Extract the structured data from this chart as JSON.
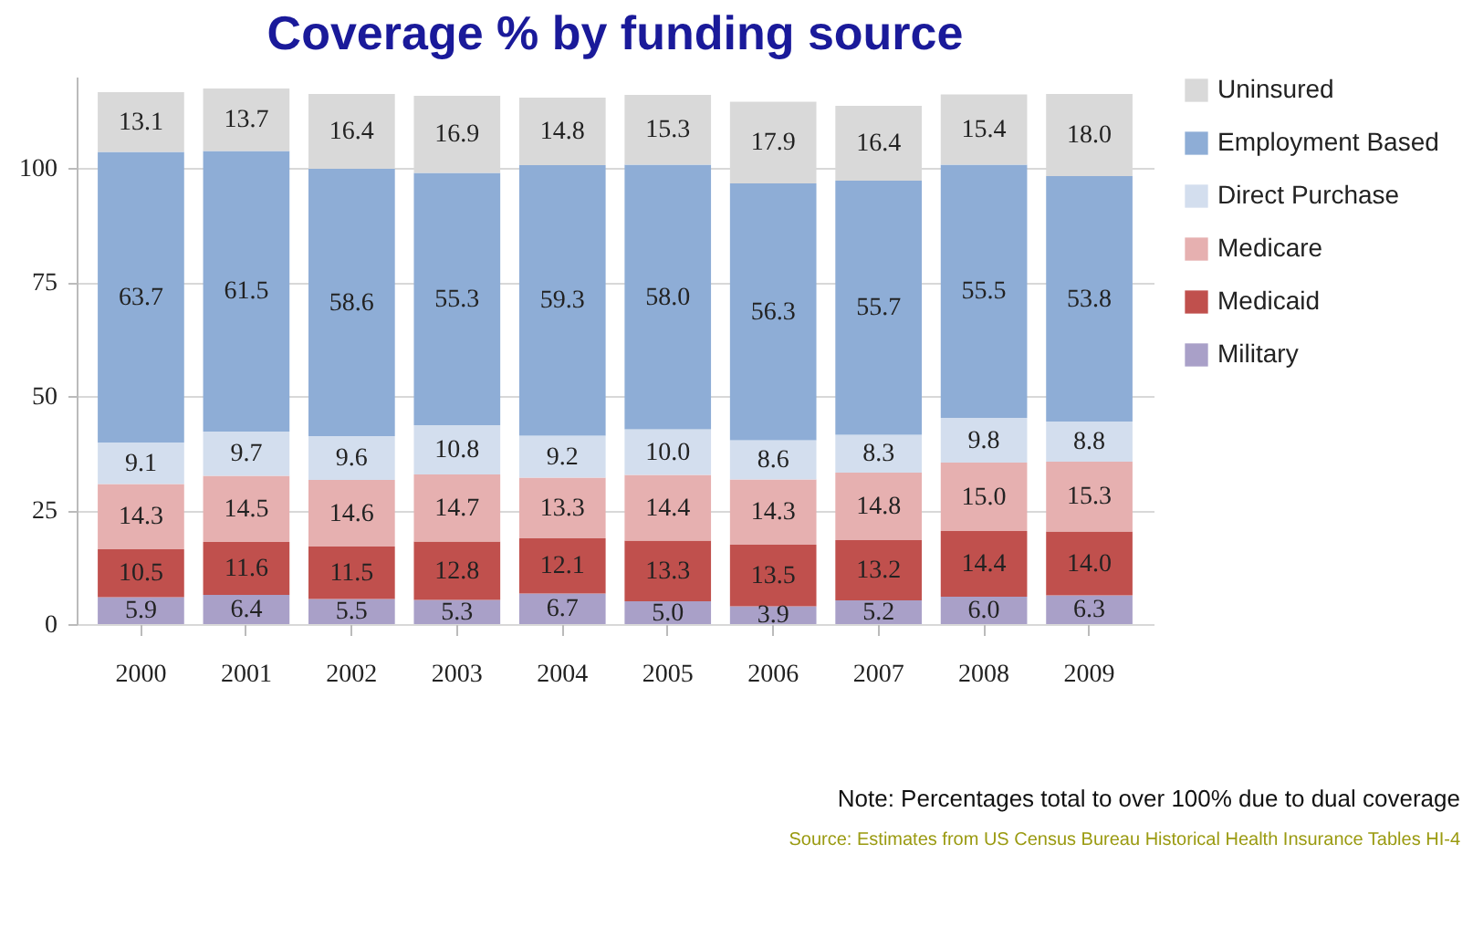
{
  "chart_data": {
    "type": "bar",
    "title": "Coverage % by funding source",
    "categories": [
      "2000",
      "2001",
      "2002",
      "2003",
      "2004",
      "2005",
      "2006",
      "2007",
      "2008",
      "2009"
    ],
    "stacked": true,
    "ylim": [
      0,
      120
    ],
    "yticks": [
      0,
      25,
      50,
      75,
      100
    ],
    "grid": "y",
    "legend": "right",
    "series": [
      {
        "name": "Military",
        "color": "#a9a0c8",
        "values": [
          5.9,
          6.4,
          5.5,
          5.3,
          6.7,
          5.0,
          3.9,
          5.2,
          6.0,
          6.3
        ],
        "value_labels": [
          "5.9",
          "6.4",
          "5.5",
          "5.3",
          "6.7",
          "5.0",
          "3.9",
          "5.2",
          "6.0",
          "6.3"
        ]
      },
      {
        "name": "Medicaid",
        "color": "#c0504d",
        "values": [
          10.5,
          11.6,
          11.5,
          12.8,
          12.1,
          13.3,
          13.5,
          13.2,
          14.4,
          14.0
        ],
        "value_labels": [
          "10.5",
          "11.6",
          "11.5",
          "12.8",
          "12.1",
          "13.3",
          "13.5",
          "13.2",
          "14.4",
          "14.0"
        ]
      },
      {
        "name": "Medicare",
        "color": "#e6b0b0",
        "values": [
          14.3,
          14.5,
          14.6,
          14.7,
          13.3,
          14.4,
          14.3,
          14.8,
          15.0,
          15.3
        ],
        "value_labels": [
          "14.3",
          "14.5",
          "14.6",
          "14.7",
          "13.3",
          "14.4",
          "14.3",
          "14.8",
          "15.0",
          "15.3"
        ]
      },
      {
        "name": "Direct Purchase",
        "color": "#d3deee",
        "values": [
          9.1,
          9.7,
          9.6,
          10.8,
          9.2,
          10.0,
          8.6,
          8.3,
          9.8,
          8.8
        ],
        "value_labels": [
          "9.1",
          "9.7",
          "9.6",
          "10.8",
          "9.2",
          "10.0",
          "8.6",
          "8.3",
          "9.8",
          "8.8"
        ]
      },
      {
        "name": "Employment Based",
        "color": "#8eadd6",
        "values": [
          63.7,
          61.5,
          58.6,
          55.3,
          59.3,
          58.0,
          56.3,
          55.7,
          55.5,
          53.8
        ],
        "value_labels": [
          "63.7",
          "61.5",
          "58.6",
          "55.3",
          "59.3",
          "58.0",
          "56.3",
          "55.7",
          "55.5",
          "53.8"
        ]
      },
      {
        "name": "Uninsured",
        "color": "#d9d9d9",
        "values": [
          13.1,
          13.7,
          16.4,
          16.9,
          14.8,
          15.3,
          17.9,
          16.4,
          15.4,
          18.0
        ],
        "value_labels": [
          "13.1",
          "13.7",
          "16.4",
          "16.9",
          "14.8",
          "15.3",
          "17.9",
          "16.4",
          "15.4",
          "18.0"
        ]
      }
    ],
    "annotations": [
      "Note: Percentages total to over 100% due to dual coverage",
      "Source:  Estimates from US Census Bureau Historical Health Insurance Tables HI-4"
    ]
  }
}
